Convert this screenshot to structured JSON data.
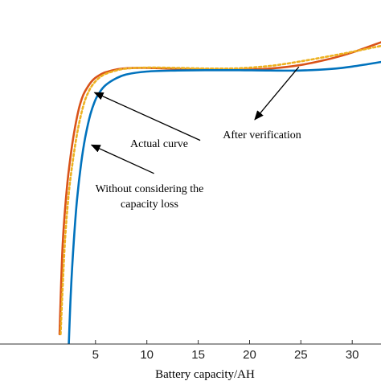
{
  "chart_data": {
    "type": "line",
    "title": "",
    "xlabel": "Battery capacity/AH",
    "ylabel": "",
    "xlim": [
      -4.3,
      32.8
    ],
    "ylim": [
      0,
      1
    ],
    "xticks": [
      5,
      10,
      15,
      20,
      25,
      30
    ],
    "grid": false,
    "legend": "none",
    "series": [
      {
        "key": "actual",
        "color": "#D95319",
        "style": "solid",
        "x": [
          1.5,
          1.8,
          2.2,
          2.6,
          3.0,
          3.4,
          3.8,
          4.2,
          4.6,
          5.0,
          5.5,
          6.0,
          7.0,
          8.0,
          10.0,
          13.0,
          16.0,
          19.0,
          22.0,
          25.0,
          28.0,
          30.0,
          32.8
        ],
        "y": [
          0.03,
          0.3,
          0.47,
          0.58,
          0.66,
          0.72,
          0.759,
          0.782,
          0.8,
          0.812,
          0.822,
          0.829,
          0.837,
          0.841,
          0.842,
          0.839,
          0.836,
          0.836,
          0.84,
          0.851,
          0.871,
          0.889,
          0.92
        ]
      },
      {
        "key": "verified",
        "color": "#EDB120",
        "style": "dotted",
        "x": [
          1.6,
          2.0,
          2.4,
          2.8,
          3.2,
          3.6,
          4.0,
          4.5,
          5.0,
          5.5,
          6.0,
          7.0,
          8.0,
          10.0,
          13.0,
          16.0,
          19.0,
          22.0,
          25.0,
          28.0,
          30.0,
          32.8
        ],
        "y": [
          0.03,
          0.3,
          0.46,
          0.56,
          0.64,
          0.7,
          0.745,
          0.78,
          0.801,
          0.815,
          0.824,
          0.834,
          0.84,
          0.843,
          0.842,
          0.84,
          0.841,
          0.848,
          0.862,
          0.879,
          0.891,
          0.909
        ]
      },
      {
        "key": "without_loss",
        "color": "#0072BD",
        "style": "solid",
        "x": [
          2.4,
          2.6,
          2.9,
          3.2,
          3.6,
          4.0,
          4.5,
          5.0,
          5.5,
          6.0,
          7.0,
          8.0,
          10.0,
          13.0,
          16.0,
          19.0,
          22.0,
          25.0,
          28.0,
          30.0,
          32.8
        ],
        "y": [
          0.0,
          0.16,
          0.32,
          0.44,
          0.55,
          0.63,
          0.7,
          0.745,
          0.772,
          0.79,
          0.81,
          0.822,
          0.831,
          0.834,
          0.835,
          0.835,
          0.834,
          0.834,
          0.839,
          0.846,
          0.86
        ]
      }
    ],
    "annotations": [
      {
        "text": "Actual curve",
        "arrow_from": [
          15.2,
          0.621
        ],
        "arrow_to": [
          4.9,
          0.767
        ]
      },
      {
        "text": "Without considering the",
        "text2": "capacity loss",
        "arrow_from": [
          10.7,
          0.52
        ],
        "arrow_to": [
          4.6,
          0.607
        ]
      },
      {
        "text": "After verification",
        "arrow_from": [
          24.8,
          0.845
        ],
        "arrow_to": [
          20.5,
          0.684
        ]
      }
    ]
  }
}
